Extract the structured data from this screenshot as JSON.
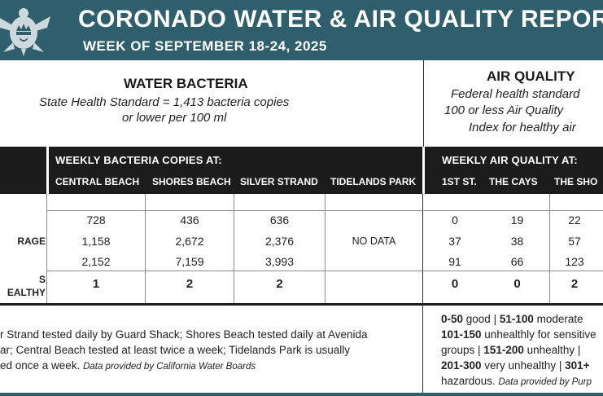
{
  "header": {
    "title": "CORONADO WATER & AIR QUALITY REPORT",
    "subtitle": "WEEK OF SEPTEMBER 18-24, 2025"
  },
  "water": {
    "heading": "WATER BACTERIA",
    "standard_line1": "State Health Standard  = 1,413 bacteria copies",
    "standard_line2": "or lower per 100 ml",
    "bar_title": "WEEKLY BACTERIA COPIES AT:",
    "columns": [
      "CENTRAL BEACH",
      "SHORES BEACH",
      "SILVER STRAND",
      "TIDELANDS PARK"
    ],
    "rows": [
      {
        "label": "",
        "values": [
          "728",
          "436",
          "636",
          ""
        ]
      },
      {
        "label": "RAGE",
        "values": [
          "1,158",
          "2,672",
          "2,376",
          "NO DATA"
        ]
      },
      {
        "label": "",
        "values": [
          "2,152",
          "7,159",
          "3,993",
          ""
        ]
      },
      {
        "label_line1": "S",
        "label_line2": "EALTHY",
        "values": [
          "1",
          "2",
          "2",
          ""
        ]
      }
    ],
    "note_line1": "r Strand tested daily by Guard Shack; Shores Beach tested daily at Avenida",
    "note_line2": "ar; Central Beach tested at least twice a week; Tidelands Park is usually",
    "note_line3": "ed once a week.",
    "note_credit": "Data provided by California Water Boards"
  },
  "air": {
    "heading": "AIR QUALITY",
    "standard_line1": "Federal health standard",
    "standard_line2": "100 or less Air Quality",
    "standard_line3": "Index for healthy air",
    "bar_title": "WEEKLY AIR QUALITY AT:",
    "columns": [
      "1ST ST.",
      "THE CAYS",
      "THE SHO"
    ],
    "rows": [
      [
        "0",
        "19",
        "22"
      ],
      [
        "37",
        "38",
        "57"
      ],
      [
        "91",
        "66",
        "123"
      ],
      [
        "0",
        "0",
        "2"
      ]
    ],
    "legend": {
      "r1_b1": "0-50",
      "r1_t1": " good | ",
      "r1_b2": "51-100",
      "r1_t2": " moderate",
      "r2_b1": "101-150",
      "r2_t1": " unhealthly for sensitive",
      "r3_t1": "groups | ",
      "r3_b1": "151-200",
      "r3_t2": " unhealthy |",
      "r4_b1": "201-300",
      "r4_t1": " very unhealthy | ",
      "r4_b2": "301+",
      "r5_t1": "hazardous. ",
      "r5_credit": "Data provided by Purp"
    }
  }
}
